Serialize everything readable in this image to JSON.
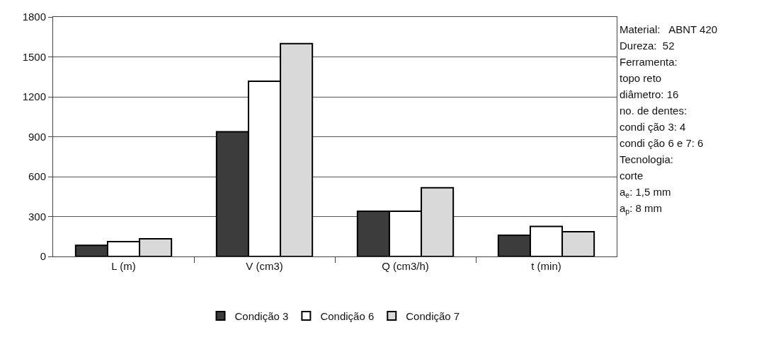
{
  "chart_data": {
    "type": "bar",
    "categories": [
      "L (m)",
      "V (cm3)",
      "Q (cm3/h)",
      "t (min)"
    ],
    "series": [
      {
        "name": "Condição 3",
        "color": "#3c3c3c",
        "values": [
          83,
          937,
          340,
          159
        ]
      },
      {
        "name": "Condição 6",
        "color": "#ffffff",
        "values": [
          111,
          1317,
          340,
          226
        ]
      },
      {
        "name": "Condição 7",
        "color": "#d9d9d9",
        "values": [
          133,
          1600,
          516,
          186
        ]
      }
    ],
    "ylim": [
      0,
      1800
    ],
    "yticks": [
      0,
      300,
      600,
      900,
      1200,
      1500,
      1800
    ],
    "grid": "y",
    "legend": "bottom",
    "annotations": [
      "Material:   ABNT 420",
      "Dureza:  52",
      "Ferramenta:",
      "topo reto",
      "diâmetro: 16",
      "no. de dentes:",
      "condi ção 3: 4",
      "condi ção 6 e 7: 6",
      "Tecnologia:",
      "corte",
      "a$_{e}$: 1,5 mm",
      "a$_{p}$: 8 mm"
    ]
  }
}
